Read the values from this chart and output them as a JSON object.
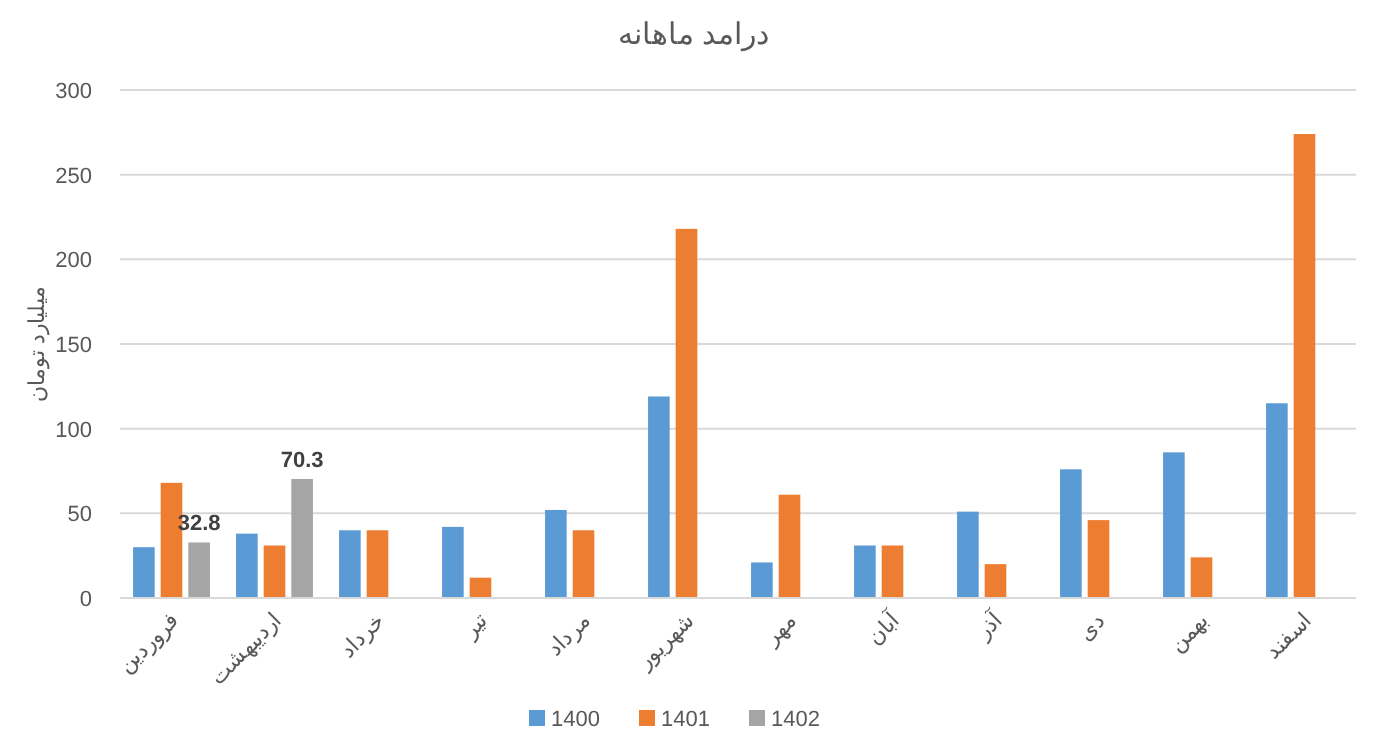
{
  "chart_data": {
    "type": "bar",
    "title": "درامد ماهانه",
    "ylabel": "میلیارد تومان",
    "categories": [
      "فروردین",
      "اردیبهشت",
      "خرداد",
      "تیر",
      "مرداد",
      "شهریور",
      "مهر",
      "آبان",
      "آذر",
      "دی",
      "بهمن",
      "اسفند"
    ],
    "series": [
      {
        "name": "1400",
        "color": "#5b9bd5",
        "values": [
          30,
          38,
          40,
          42,
          52,
          119,
          21,
          31,
          51,
          76,
          86,
          115
        ]
      },
      {
        "name": "1401",
        "color": "#ed7d31",
        "values": [
          68,
          31,
          40,
          12,
          40,
          218,
          61,
          31,
          20,
          46,
          24,
          274
        ]
      },
      {
        "name": "1402",
        "color": "#a5a5a5",
        "values": [
          32.8,
          70.3,
          null,
          null,
          null,
          null,
          null,
          null,
          null,
          null,
          null,
          null
        ],
        "value_labels": [
          "32.8",
          "70.3",
          null,
          null,
          null,
          null,
          null,
          null,
          null,
          null,
          null,
          null
        ]
      }
    ],
    "ylim": [
      0,
      300
    ],
    "yticks": [
      0,
      50,
      100,
      150,
      200,
      250,
      300
    ],
    "grid": "y",
    "legend": "bottom"
  }
}
